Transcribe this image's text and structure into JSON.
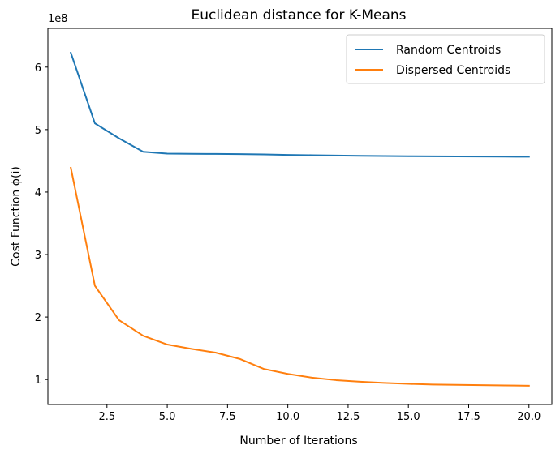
{
  "chart_data": {
    "type": "line",
    "title": "Euclidean distance for K-Means",
    "xlabel": "Number of Iterations",
    "ylabel": "Cost Function ϕ(i)",
    "y_offset_label": "1e8",
    "xlim": [
      0.05,
      20.95
    ],
    "ylim": [
      0.6,
      6.62
    ],
    "x_ticks": [
      2.5,
      5.0,
      7.5,
      10.0,
      12.5,
      15.0,
      17.5,
      20.0
    ],
    "x_tick_labels": [
      "2.5",
      "5.0",
      "7.5",
      "10.0",
      "12.5",
      "15.0",
      "17.5",
      "20.0"
    ],
    "y_ticks": [
      1,
      2,
      3,
      4,
      5,
      6
    ],
    "y_tick_labels": [
      "1",
      "2",
      "3",
      "4",
      "5",
      "6"
    ],
    "legend_position": "top-right",
    "grid": false,
    "x": [
      1,
      2,
      3,
      4,
      5,
      6,
      7,
      8,
      9,
      10,
      11,
      12,
      13,
      14,
      15,
      16,
      17,
      18,
      19,
      20
    ],
    "series": [
      {
        "name": "Random Centroids",
        "color": "#1f77b4",
        "values": [
          6.23,
          5.1,
          4.86,
          4.645,
          4.615,
          4.612,
          4.61,
          4.607,
          4.602,
          4.595,
          4.59,
          4.585,
          4.58,
          4.577,
          4.574,
          4.572,
          4.57,
          4.568,
          4.566,
          4.565
        ]
      },
      {
        "name": "Dispersed Centroids",
        "color": "#ff7f0e",
        "values": [
          4.39,
          2.5,
          1.95,
          1.7,
          1.56,
          1.49,
          1.43,
          1.33,
          1.17,
          1.09,
          1.03,
          0.99,
          0.965,
          0.945,
          0.93,
          0.92,
          0.915,
          0.91,
          0.905,
          0.9
        ]
      }
    ]
  }
}
